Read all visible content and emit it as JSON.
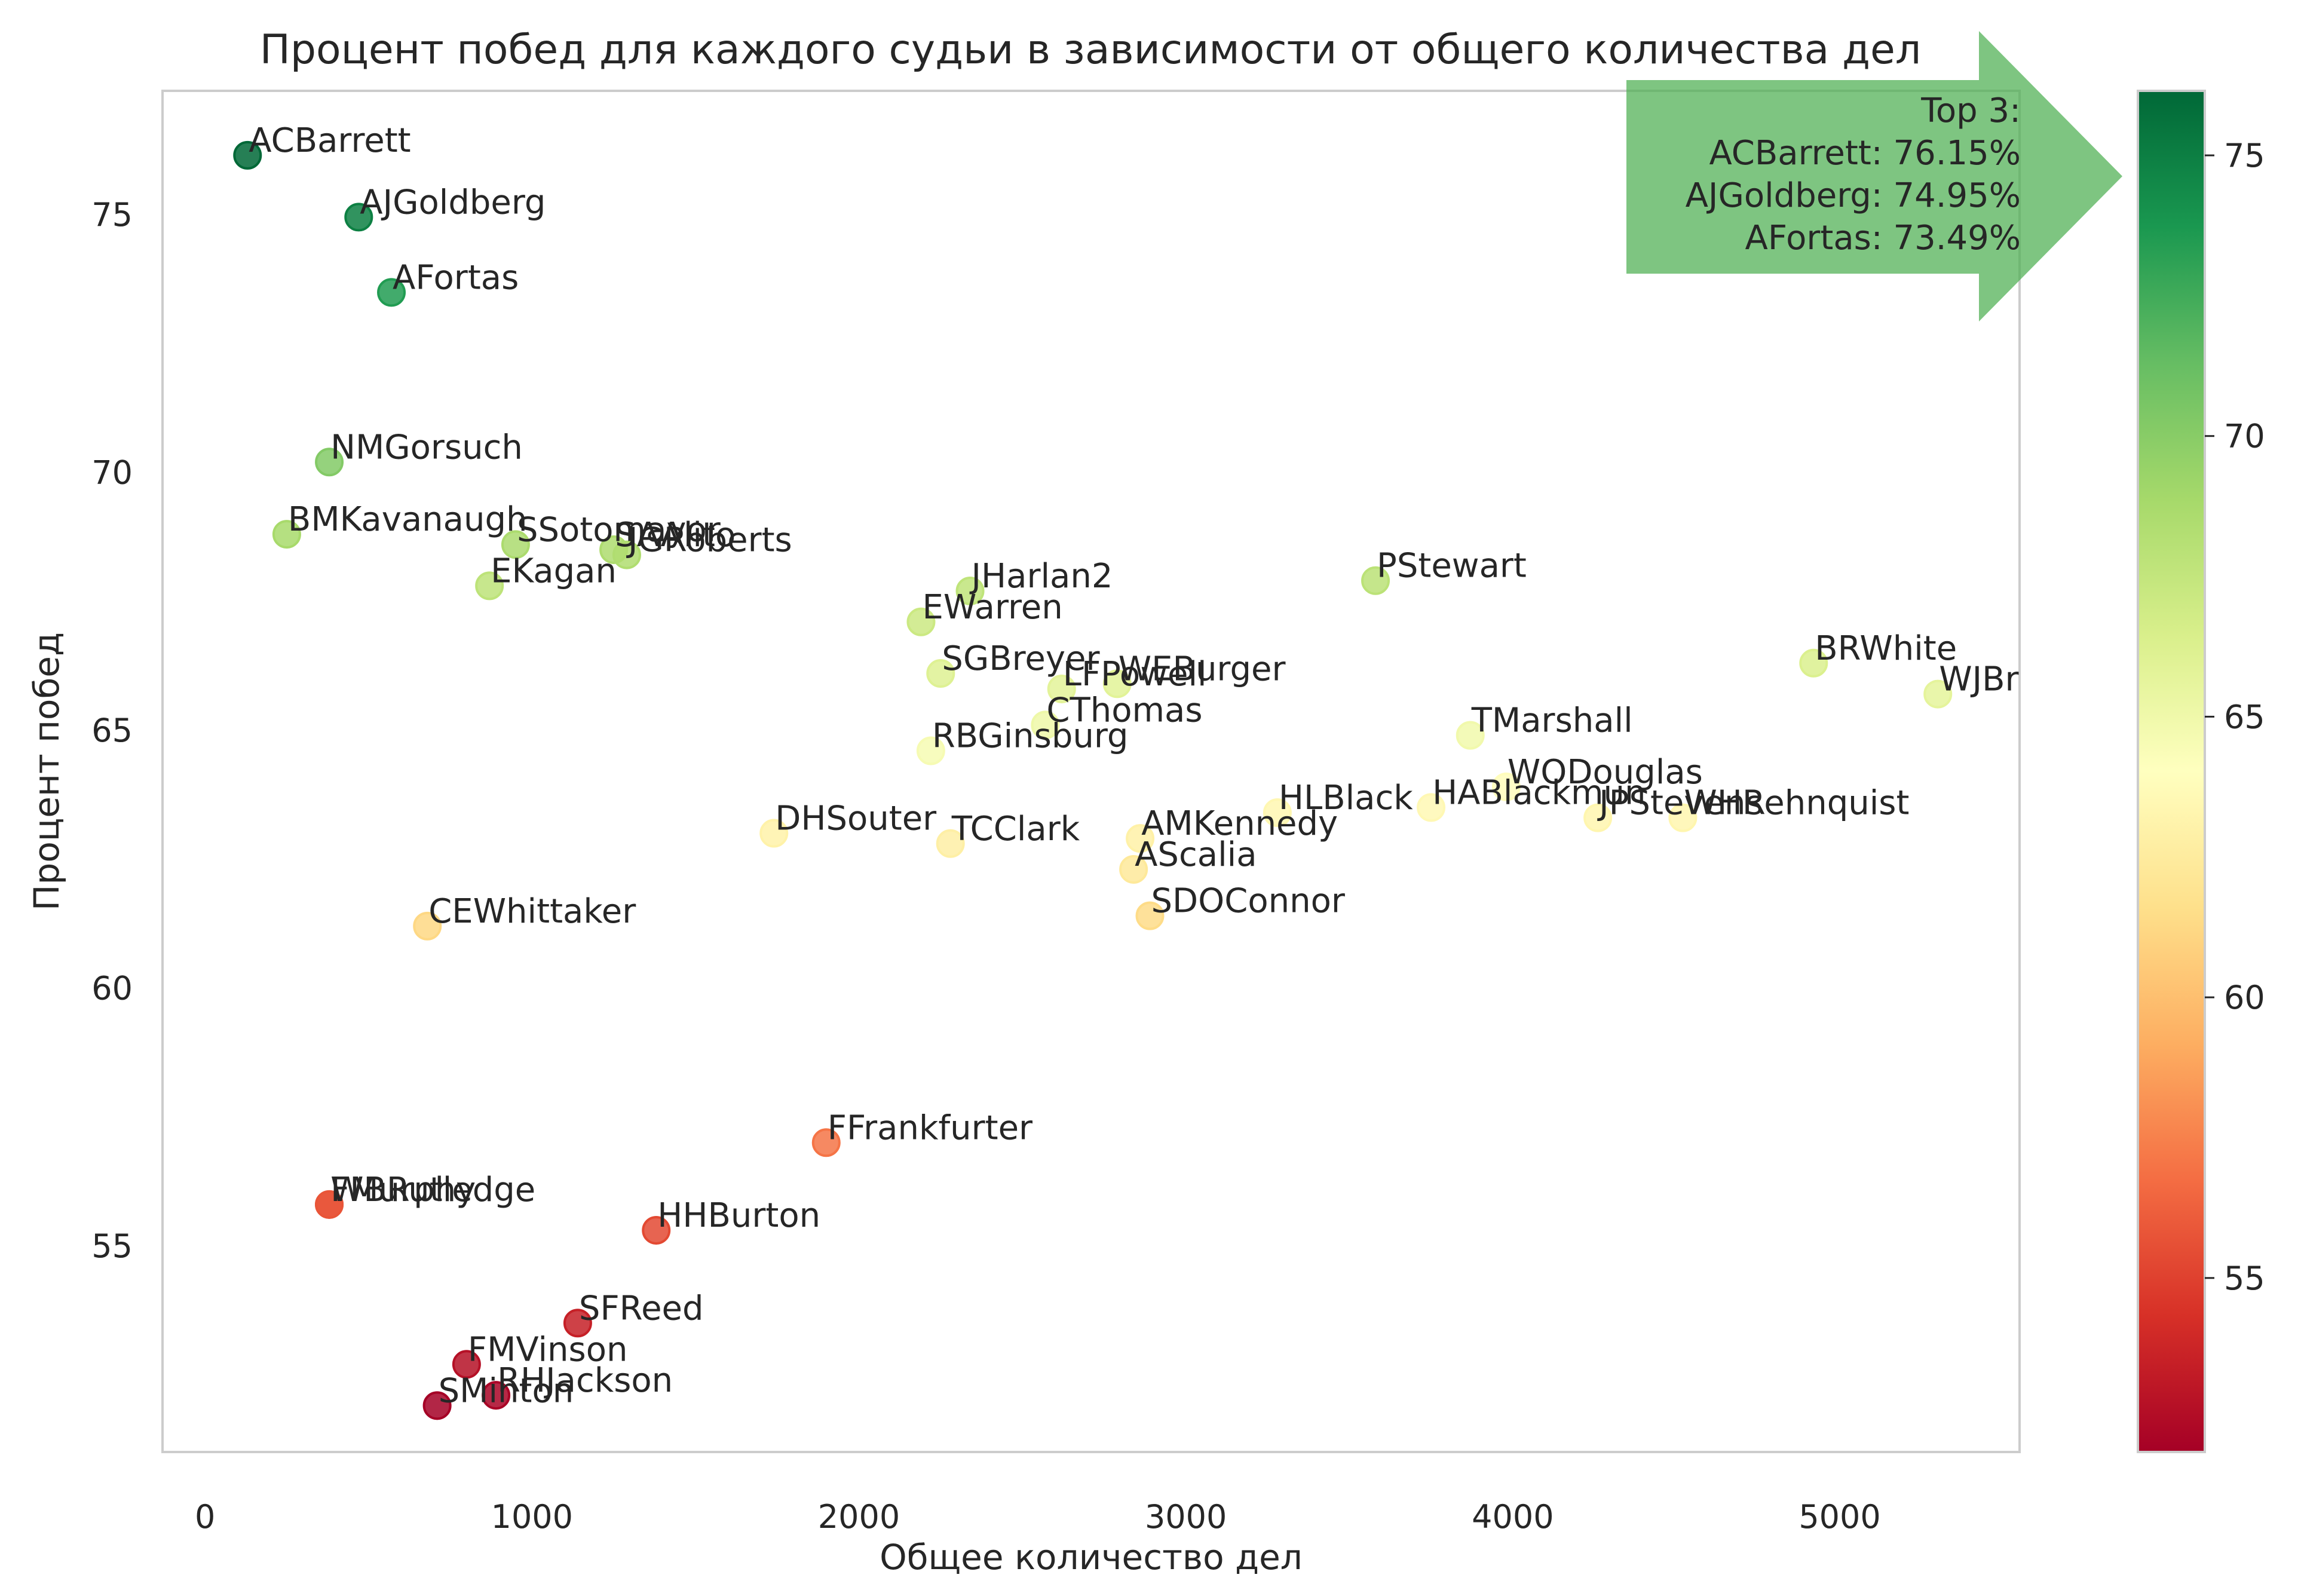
{
  "chart_data": {
    "type": "scatter",
    "title": "Процент побед для каждого судьи в зависимости от общего количества дел",
    "xlabel": "Общее количество дел",
    "ylabel": "Процент побед",
    "xlim": [
      -130,
      5550
    ],
    "ylim": [
      51.0,
      77.4
    ],
    "xticks": [
      "0",
      "1000",
      "2000",
      "3000",
      "4000",
      "5000"
    ],
    "xtick_values": [
      0,
      1000,
      2000,
      3000,
      4000,
      5000
    ],
    "yticks": [
      "55",
      "60",
      "65",
      "70",
      "75"
    ],
    "ytick_values": [
      55,
      60,
      65,
      70,
      75
    ],
    "grid": false,
    "colormap": "RdYlGn",
    "colorbar": {
      "range": [
        51.9,
        76.15
      ],
      "ticks": [
        "55",
        "60",
        "65",
        "70",
        "75"
      ],
      "tick_values": [
        55,
        60,
        65,
        70,
        75
      ]
    },
    "annotation": {
      "lines": [
        "Top 3:",
        "ACBarrett: 76.15%",
        "AJGoldberg: 74.95%",
        "AFortas: 73.49%"
      ],
      "arrow_color": "#4caf50"
    },
    "points": [
      {
        "label": "ACBarrett",
        "x": 130,
        "y": 76.15
      },
      {
        "label": "AJGoldberg",
        "x": 470,
        "y": 74.95
      },
      {
        "label": "AFortas",
        "x": 570,
        "y": 73.49
      },
      {
        "label": "NMGorsuch",
        "x": 380,
        "y": 70.2
      },
      {
        "label": "BMKavanaugh",
        "x": 250,
        "y": 68.8
      },
      {
        "label": "SSotomayor",
        "x": 950,
        "y": 68.6
      },
      {
        "label": "SAAlito",
        "x": 1250,
        "y": 68.5
      },
      {
        "label": "JGRoberts",
        "x": 1290,
        "y": 68.4
      },
      {
        "label": "EKagan",
        "x": 870,
        "y": 67.8
      },
      {
        "label": "JHarlan2",
        "x": 2340,
        "y": 67.7
      },
      {
        "label": "PStewart",
        "x": 3580,
        "y": 67.9
      },
      {
        "label": "EWarren",
        "x": 2190,
        "y": 67.1
      },
      {
        "label": "SGBreyer",
        "x": 2250,
        "y": 66.1
      },
      {
        "label": "WEBurger",
        "x": 2790,
        "y": 65.9
      },
      {
        "label": "LFPowell",
        "x": 2620,
        "y": 65.8
      },
      {
        "label": "CThomas",
        "x": 2570,
        "y": 65.1
      },
      {
        "label": "RBGinsburg",
        "x": 2220,
        "y": 64.6
      },
      {
        "label": "BRWhite",
        "x": 4920,
        "y": 66.3
      },
      {
        "label": "WJBrennan",
        "x": 5300,
        "y": 65.7
      },
      {
        "label": "TMarshall",
        "x": 3870,
        "y": 64.9
      },
      {
        "label": "WODouglas",
        "x": 3980,
        "y": 63.9
      },
      {
        "label": "HABlackmun",
        "x": 3750,
        "y": 63.5
      },
      {
        "label": "HLBlack",
        "x": 3280,
        "y": 63.4
      },
      {
        "label": "JPStevens",
        "x": 4260,
        "y": 63.3
      },
      {
        "label": "WHRehnquist",
        "x": 4520,
        "y": 63.3
      },
      {
        "label": "DHSouter",
        "x": 1740,
        "y": 63.0
      },
      {
        "label": "TCClark",
        "x": 2280,
        "y": 62.8
      },
      {
        "label": "AMKennedy",
        "x": 2860,
        "y": 62.9
      },
      {
        "label": "AScalia",
        "x": 2840,
        "y": 62.3
      },
      {
        "label": "SDOConnor",
        "x": 2890,
        "y": 61.4
      },
      {
        "label": "CEWhittaker",
        "x": 680,
        "y": 61.2
      },
      {
        "label": "FFrankfurter",
        "x": 1900,
        "y": 57.0
      },
      {
        "label": "WBRutledge",
        "x": 380,
        "y": 55.8
      },
      {
        "label": "FMurphy",
        "x": 380,
        "y": 55.8
      },
      {
        "label": "HHBurton",
        "x": 1380,
        "y": 55.3
      },
      {
        "label": "SFReed",
        "x": 1140,
        "y": 53.5
      },
      {
        "label": "FMVinson",
        "x": 800,
        "y": 52.7
      },
      {
        "label": "RHJackson",
        "x": 890,
        "y": 52.1
      },
      {
        "label": "SMinton",
        "x": 710,
        "y": 51.9
      }
    ]
  }
}
